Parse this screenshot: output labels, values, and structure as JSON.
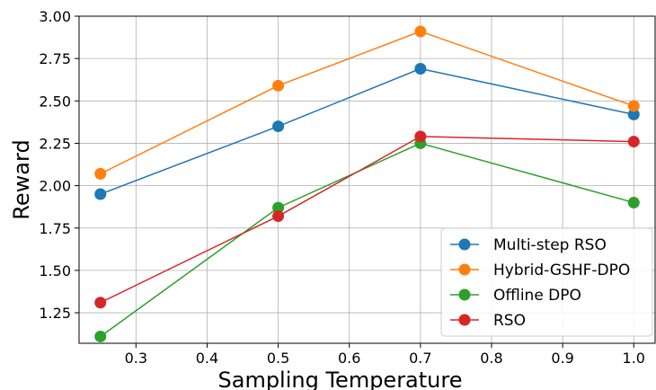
{
  "chart_data": {
    "type": "line",
    "title": "",
    "xlabel": "Sampling Temperature",
    "ylabel": "Reward",
    "xlim": [
      0.22,
      1.03
    ],
    "ylim": [
      1.07,
      3.0
    ],
    "xticks": [
      0.3,
      0.4,
      0.5,
      0.6,
      0.7,
      0.8,
      0.9,
      1.0
    ],
    "xtick_labels": [
      "0.3",
      "0.4",
      "0.5",
      "0.6",
      "0.7",
      "0.8",
      "0.9",
      "1.0"
    ],
    "yticks": [
      1.25,
      1.5,
      1.75,
      2.0,
      2.25,
      2.5,
      2.75,
      3.0
    ],
    "ytick_labels": [
      "1.25",
      "1.50",
      "1.75",
      "2.00",
      "2.25",
      "2.50",
      "2.75",
      "3.00"
    ],
    "grid": true,
    "legend_position": "bottom-right",
    "x": [
      0.25,
      0.5,
      0.7,
      1.0
    ],
    "series": [
      {
        "name": "Multi-step RSO",
        "color": "#1f77b4",
        "values": [
          1.95,
          2.35,
          2.69,
          2.42
        ]
      },
      {
        "name": "Hybrid-GSHF-DPO",
        "color": "#ff7f0e",
        "values": [
          2.07,
          2.59,
          2.91,
          2.47
        ]
      },
      {
        "name": "Offline DPO",
        "color": "#2ca02c",
        "values": [
          1.11,
          1.87,
          2.25,
          1.9
        ]
      },
      {
        "name": "RSO",
        "color": "#d62728",
        "values": [
          1.31,
          1.82,
          2.29,
          2.26
        ]
      }
    ]
  }
}
